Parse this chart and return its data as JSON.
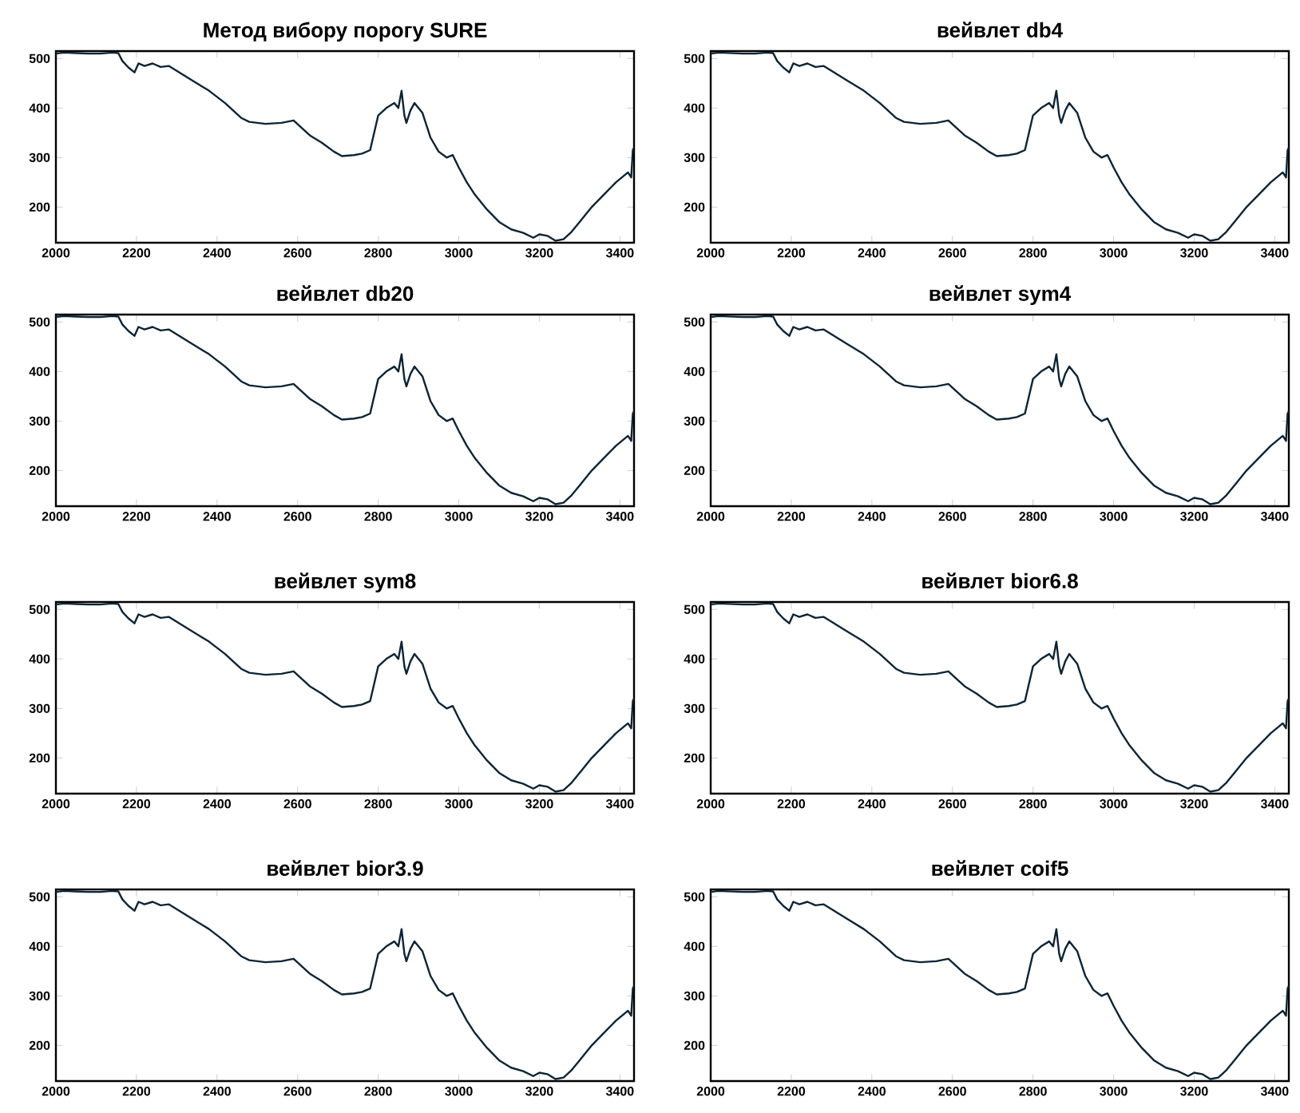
{
  "chart_data": [
    {
      "type": "line",
      "title": "Метод вибору порогу SURE",
      "color": "#0d2435",
      "xlim": [
        2000,
        3435
      ],
      "ylim": [
        128,
        515
      ],
      "xticks": [
        2000,
        2200,
        2400,
        2600,
        2800,
        3000,
        3200,
        3400
      ],
      "yticks": [
        200,
        300,
        400,
        500
      ],
      "x": [
        2000,
        2020,
        2050,
        2080,
        2110,
        2140,
        2155,
        2165,
        2180,
        2195,
        2205,
        2220,
        2240,
        2260,
        2280,
        2300,
        2340,
        2380,
        2420,
        2440,
        2460,
        2480,
        2520,
        2560,
        2590,
        2610,
        2630,
        2660,
        2690,
        2710,
        2740,
        2760,
        2780,
        2800,
        2820,
        2840,
        2850,
        2858,
        2865,
        2870,
        2880,
        2890,
        2910,
        2930,
        2950,
        2970,
        2985,
        3000,
        3020,
        3040,
        3070,
        3100,
        3130,
        3160,
        3185,
        3200,
        3220,
        3240,
        3260,
        3280,
        3300,
        3330,
        3360,
        3390,
        3420,
        3428,
        3432,
        3435
      ],
      "values": [
        510,
        512,
        511,
        510,
        510,
        512,
        511,
        495,
        482,
        472,
        490,
        485,
        490,
        483,
        485,
        475,
        455,
        435,
        410,
        395,
        380,
        372,
        368,
        370,
        375,
        360,
        345,
        330,
        312,
        303,
        305,
        308,
        315,
        385,
        400,
        410,
        400,
        435,
        385,
        370,
        395,
        410,
        390,
        340,
        312,
        300,
        305,
        280,
        250,
        225,
        195,
        170,
        155,
        148,
        138,
        145,
        142,
        132,
        135,
        150,
        170,
        200,
        225,
        250,
        270,
        260,
        315,
        320
      ]
    },
    {
      "type": "line",
      "title": "вейвлет db4",
      "color": "#0d2435",
      "xlim": [
        2000,
        3435
      ],
      "ylim": [
        128,
        515
      ],
      "xticks": [
        2000,
        2200,
        2400,
        2600,
        2800,
        3000,
        3200,
        3400
      ],
      "yticks": [
        200,
        300,
        400,
        500
      ],
      "x": [
        2000,
        2020,
        2050,
        2080,
        2110,
        2140,
        2155,
        2165,
        2180,
        2195,
        2205,
        2220,
        2240,
        2260,
        2280,
        2300,
        2340,
        2380,
        2420,
        2440,
        2460,
        2480,
        2520,
        2560,
        2590,
        2610,
        2630,
        2660,
        2690,
        2710,
        2740,
        2760,
        2780,
        2800,
        2820,
        2840,
        2850,
        2858,
        2865,
        2870,
        2880,
        2890,
        2910,
        2930,
        2950,
        2970,
        2985,
        3000,
        3020,
        3040,
        3070,
        3100,
        3130,
        3160,
        3185,
        3200,
        3220,
        3240,
        3260,
        3280,
        3300,
        3330,
        3360,
        3390,
        3420,
        3428,
        3432,
        3435
      ],
      "values": [
        510,
        512,
        511,
        510,
        510,
        512,
        511,
        495,
        482,
        472,
        490,
        485,
        490,
        483,
        485,
        475,
        455,
        435,
        410,
        395,
        380,
        372,
        368,
        370,
        375,
        360,
        345,
        330,
        312,
        303,
        305,
        308,
        315,
        385,
        400,
        410,
        400,
        435,
        385,
        370,
        395,
        410,
        390,
        340,
        312,
        300,
        305,
        280,
        250,
        225,
        195,
        170,
        155,
        148,
        138,
        145,
        142,
        132,
        135,
        150,
        170,
        200,
        225,
        250,
        270,
        260,
        315,
        320
      ]
    },
    {
      "type": "line",
      "title": "вейвлет db20",
      "color": "#0d2435",
      "xlim": [
        2000,
        3435
      ],
      "ylim": [
        128,
        515
      ],
      "xticks": [
        2000,
        2200,
        2400,
        2600,
        2800,
        3000,
        3200,
        3400
      ],
      "yticks": [
        200,
        300,
        400,
        500
      ],
      "x": [
        2000,
        2020,
        2050,
        2080,
        2110,
        2140,
        2155,
        2165,
        2180,
        2195,
        2205,
        2220,
        2240,
        2260,
        2280,
        2300,
        2340,
        2380,
        2420,
        2440,
        2460,
        2480,
        2520,
        2560,
        2590,
        2610,
        2630,
        2660,
        2690,
        2710,
        2740,
        2760,
        2780,
        2800,
        2820,
        2840,
        2850,
        2858,
        2865,
        2870,
        2880,
        2890,
        2910,
        2930,
        2950,
        2970,
        2985,
        3000,
        3020,
        3040,
        3070,
        3100,
        3130,
        3160,
        3185,
        3200,
        3220,
        3240,
        3260,
        3280,
        3300,
        3330,
        3360,
        3390,
        3420,
        3428,
        3432,
        3435
      ],
      "values": [
        510,
        512,
        511,
        510,
        510,
        512,
        511,
        495,
        482,
        472,
        490,
        485,
        490,
        483,
        485,
        475,
        455,
        435,
        410,
        395,
        380,
        372,
        368,
        370,
        375,
        360,
        345,
        330,
        312,
        303,
        305,
        308,
        315,
        385,
        400,
        410,
        400,
        435,
        385,
        370,
        395,
        410,
        390,
        340,
        312,
        300,
        305,
        280,
        250,
        225,
        195,
        170,
        155,
        148,
        138,
        145,
        142,
        132,
        135,
        150,
        170,
        200,
        225,
        250,
        270,
        260,
        315,
        320
      ]
    },
    {
      "type": "line",
      "title": "вейвлет sym4",
      "color": "#0d2435",
      "xlim": [
        2000,
        3435
      ],
      "ylim": [
        128,
        515
      ],
      "xticks": [
        2000,
        2200,
        2400,
        2600,
        2800,
        3000,
        3200,
        3400
      ],
      "yticks": [
        200,
        300,
        400,
        500
      ],
      "x": [
        2000,
        2020,
        2050,
        2080,
        2110,
        2140,
        2155,
        2165,
        2180,
        2195,
        2205,
        2220,
        2240,
        2260,
        2280,
        2300,
        2340,
        2380,
        2420,
        2440,
        2460,
        2480,
        2520,
        2560,
        2590,
        2610,
        2630,
        2660,
        2690,
        2710,
        2740,
        2760,
        2780,
        2800,
        2820,
        2840,
        2850,
        2858,
        2865,
        2870,
        2880,
        2890,
        2910,
        2930,
        2950,
        2970,
        2985,
        3000,
        3020,
        3040,
        3070,
        3100,
        3130,
        3160,
        3185,
        3200,
        3220,
        3240,
        3260,
        3280,
        3300,
        3330,
        3360,
        3390,
        3420,
        3428,
        3432,
        3435
      ],
      "values": [
        510,
        512,
        511,
        510,
        510,
        512,
        511,
        495,
        482,
        472,
        490,
        485,
        490,
        483,
        485,
        475,
        455,
        435,
        410,
        395,
        380,
        372,
        368,
        370,
        375,
        360,
        345,
        330,
        312,
        303,
        305,
        308,
        315,
        385,
        400,
        410,
        400,
        435,
        385,
        370,
        395,
        410,
        390,
        340,
        312,
        300,
        305,
        280,
        250,
        225,
        195,
        170,
        155,
        148,
        138,
        145,
        142,
        132,
        135,
        150,
        170,
        200,
        225,
        250,
        270,
        260,
        315,
        320
      ]
    },
    {
      "type": "line",
      "title": "вейвлет sym8",
      "color": "#0d2435",
      "xlim": [
        2000,
        3435
      ],
      "ylim": [
        128,
        515
      ],
      "xticks": [
        2000,
        2200,
        2400,
        2600,
        2800,
        3000,
        3200,
        3400
      ],
      "yticks": [
        200,
        300,
        400,
        500
      ],
      "x": [
        2000,
        2020,
        2050,
        2080,
        2110,
        2140,
        2155,
        2165,
        2180,
        2195,
        2205,
        2220,
        2240,
        2260,
        2280,
        2300,
        2340,
        2380,
        2420,
        2440,
        2460,
        2480,
        2520,
        2560,
        2590,
        2610,
        2630,
        2660,
        2690,
        2710,
        2740,
        2760,
        2780,
        2800,
        2820,
        2840,
        2850,
        2858,
        2865,
        2870,
        2880,
        2890,
        2910,
        2930,
        2950,
        2970,
        2985,
        3000,
        3020,
        3040,
        3070,
        3100,
        3130,
        3160,
        3185,
        3200,
        3220,
        3240,
        3260,
        3280,
        3300,
        3330,
        3360,
        3390,
        3420,
        3428,
        3432,
        3435
      ],
      "values": [
        510,
        512,
        511,
        510,
        510,
        512,
        511,
        495,
        482,
        472,
        490,
        485,
        490,
        483,
        485,
        475,
        455,
        435,
        410,
        395,
        380,
        372,
        368,
        370,
        375,
        360,
        345,
        330,
        312,
        303,
        305,
        308,
        315,
        385,
        400,
        410,
        400,
        435,
        385,
        370,
        395,
        410,
        390,
        340,
        312,
        300,
        305,
        280,
        250,
        225,
        195,
        170,
        155,
        148,
        138,
        145,
        142,
        132,
        135,
        150,
        170,
        200,
        225,
        250,
        270,
        260,
        315,
        320
      ]
    },
    {
      "type": "line",
      "title": "вейвлет bior6.8",
      "color": "#0d2435",
      "xlim": [
        2000,
        3435
      ],
      "ylim": [
        128,
        515
      ],
      "xticks": [
        2000,
        2200,
        2400,
        2600,
        2800,
        3000,
        3200,
        3400
      ],
      "yticks": [
        200,
        300,
        400,
        500
      ],
      "x": [
        2000,
        2020,
        2050,
        2080,
        2110,
        2140,
        2155,
        2165,
        2180,
        2195,
        2205,
        2220,
        2240,
        2260,
        2280,
        2300,
        2340,
        2380,
        2420,
        2440,
        2460,
        2480,
        2520,
        2560,
        2590,
        2610,
        2630,
        2660,
        2690,
        2710,
        2740,
        2760,
        2780,
        2800,
        2820,
        2840,
        2850,
        2858,
        2865,
        2870,
        2880,
        2890,
        2910,
        2930,
        2950,
        2970,
        2985,
        3000,
        3020,
        3040,
        3070,
        3100,
        3130,
        3160,
        3185,
        3200,
        3220,
        3240,
        3260,
        3280,
        3300,
        3330,
        3360,
        3390,
        3420,
        3428,
        3432,
        3435
      ],
      "values": [
        510,
        512,
        511,
        510,
        510,
        512,
        511,
        495,
        482,
        472,
        490,
        485,
        490,
        483,
        485,
        475,
        455,
        435,
        410,
        395,
        380,
        372,
        368,
        370,
        375,
        360,
        345,
        330,
        312,
        303,
        305,
        308,
        315,
        385,
        400,
        410,
        400,
        435,
        385,
        370,
        395,
        410,
        390,
        340,
        312,
        300,
        305,
        280,
        250,
        225,
        195,
        170,
        155,
        148,
        138,
        145,
        142,
        132,
        135,
        150,
        170,
        200,
        225,
        250,
        270,
        260,
        315,
        320
      ]
    },
    {
      "type": "line",
      "title": "вейвлет bior3.9",
      "color": "#0d2435",
      "xlim": [
        2000,
        3435
      ],
      "ylim": [
        128,
        515
      ],
      "xticks": [
        2000,
        2200,
        2400,
        2600,
        2800,
        3000,
        3200,
        3400
      ],
      "yticks": [
        200,
        300,
        400,
        500
      ],
      "x": [
        2000,
        2020,
        2050,
        2080,
        2110,
        2140,
        2155,
        2165,
        2180,
        2195,
        2205,
        2220,
        2240,
        2260,
        2280,
        2300,
        2340,
        2380,
        2420,
        2440,
        2460,
        2480,
        2520,
        2560,
        2590,
        2610,
        2630,
        2660,
        2690,
        2710,
        2740,
        2760,
        2780,
        2800,
        2820,
        2840,
        2850,
        2858,
        2865,
        2870,
        2880,
        2890,
        2910,
        2930,
        2950,
        2970,
        2985,
        3000,
        3020,
        3040,
        3070,
        3100,
        3130,
        3160,
        3185,
        3200,
        3220,
        3240,
        3260,
        3280,
        3300,
        3330,
        3360,
        3390,
        3420,
        3428,
        3432,
        3435
      ],
      "values": [
        510,
        512,
        511,
        510,
        510,
        512,
        511,
        495,
        482,
        472,
        490,
        485,
        490,
        483,
        485,
        475,
        455,
        435,
        410,
        395,
        380,
        372,
        368,
        370,
        375,
        360,
        345,
        330,
        312,
        303,
        305,
        308,
        315,
        385,
        400,
        410,
        400,
        435,
        385,
        370,
        395,
        410,
        390,
        340,
        312,
        300,
        305,
        280,
        250,
        225,
        195,
        170,
        155,
        148,
        138,
        145,
        142,
        132,
        135,
        150,
        170,
        200,
        225,
        250,
        270,
        260,
        315,
        320
      ]
    },
    {
      "type": "line",
      "title": "вейвлет coif5",
      "color": "#0d2435",
      "xlim": [
        2000,
        3435
      ],
      "ylim": [
        128,
        515
      ],
      "xticks": [
        2000,
        2200,
        2400,
        2600,
        2800,
        3000,
        3200,
        3400
      ],
      "yticks": [
        200,
        300,
        400,
        500
      ],
      "x": [
        2000,
        2020,
        2050,
        2080,
        2110,
        2140,
        2155,
        2165,
        2180,
        2195,
        2205,
        2220,
        2240,
        2260,
        2280,
        2300,
        2340,
        2380,
        2420,
        2440,
        2460,
        2480,
        2520,
        2560,
        2590,
        2610,
        2630,
        2660,
        2690,
        2710,
        2740,
        2760,
        2780,
        2800,
        2820,
        2840,
        2850,
        2858,
        2865,
        2870,
        2880,
        2890,
        2910,
        2930,
        2950,
        2970,
        2985,
        3000,
        3020,
        3040,
        3070,
        3100,
        3130,
        3160,
        3185,
        3200,
        3220,
        3240,
        3260,
        3280,
        3300,
        3330,
        3360,
        3390,
        3420,
        3428,
        3432,
        3435
      ],
      "values": [
        510,
        512,
        511,
        510,
        510,
        512,
        511,
        495,
        482,
        472,
        490,
        485,
        490,
        483,
        485,
        475,
        455,
        435,
        410,
        395,
        380,
        372,
        368,
        370,
        375,
        360,
        345,
        330,
        312,
        303,
        305,
        308,
        315,
        385,
        400,
        410,
        400,
        435,
        385,
        370,
        395,
        410,
        390,
        340,
        312,
        300,
        305,
        280,
        250,
        225,
        195,
        170,
        155,
        148,
        138,
        145,
        142,
        132,
        135,
        150,
        170,
        200,
        225,
        250,
        270,
        260,
        315,
        320
      ]
    }
  ]
}
